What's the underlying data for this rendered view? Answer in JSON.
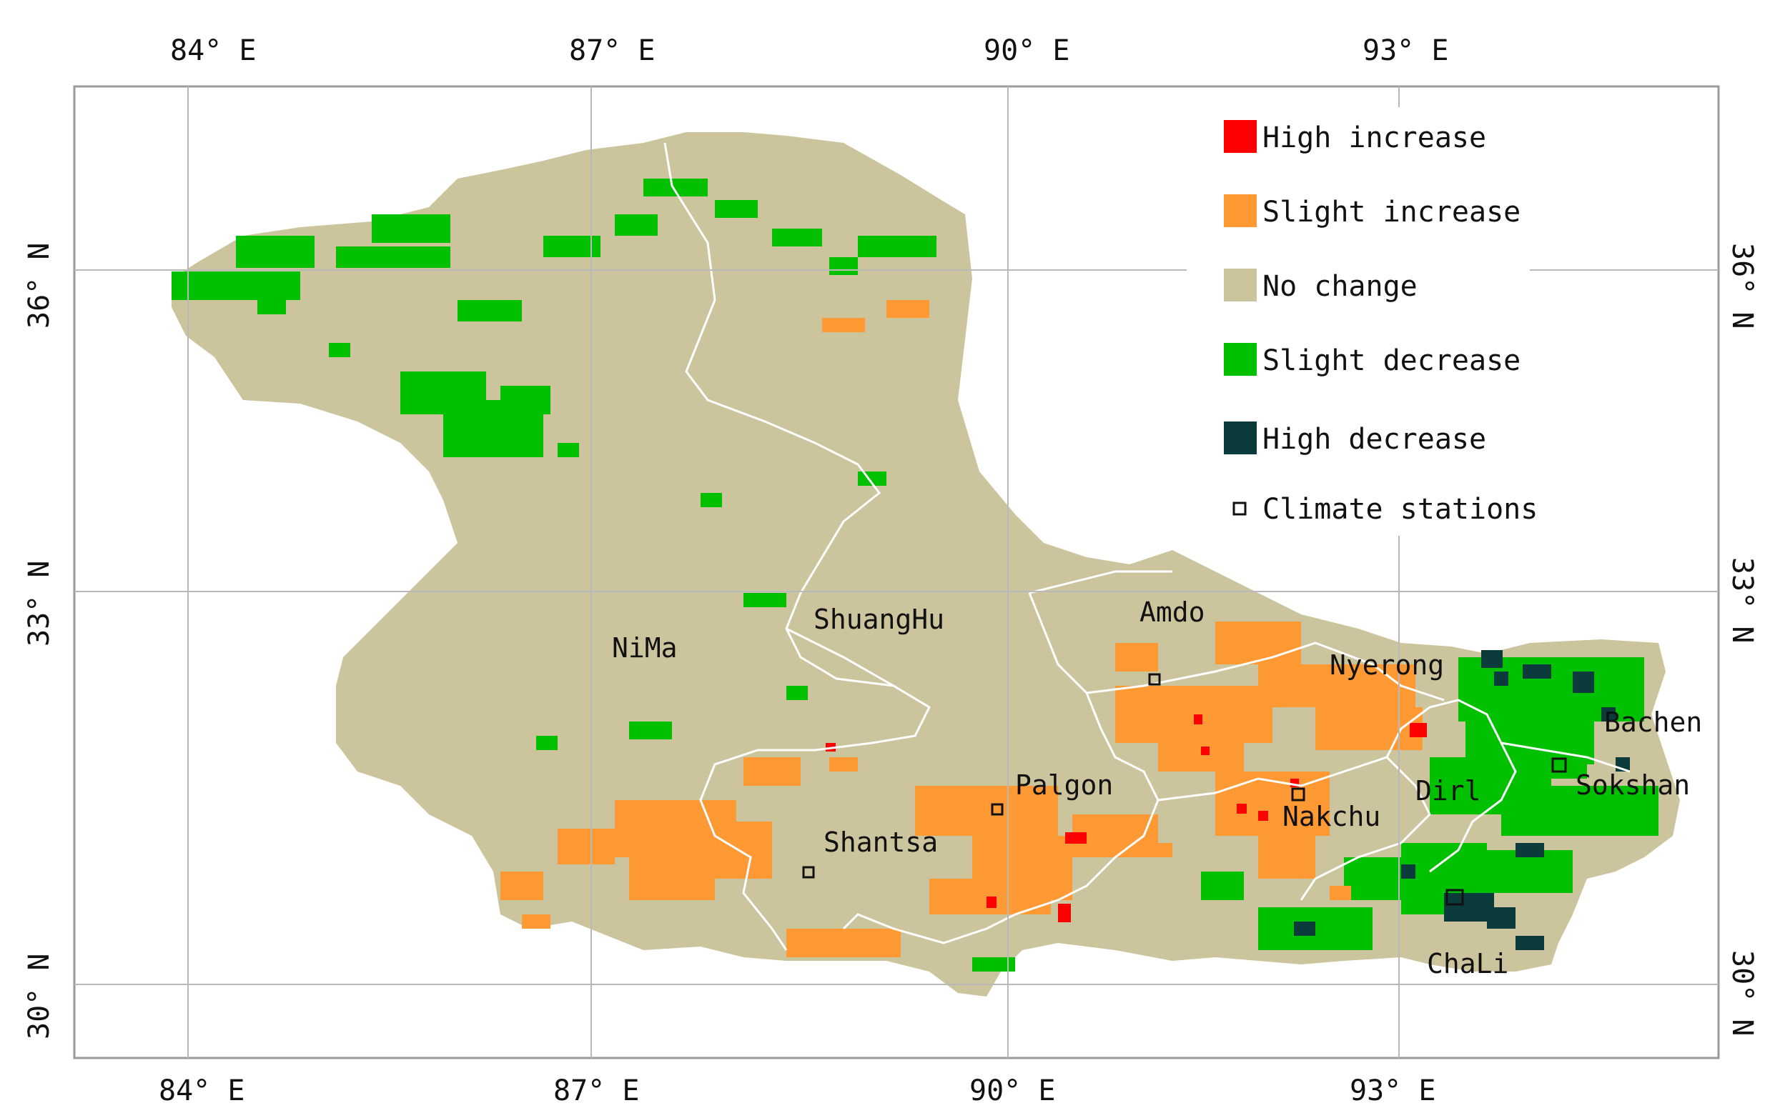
{
  "axes": {
    "longitude_labels_top": [
      "84° E",
      "87° E",
      "90° E",
      "93° E"
    ],
    "longitude_labels_bottom": [
      "84° E",
      "87° E",
      "90° E",
      "93° E"
    ],
    "latitude_labels_left": [
      "36° N",
      "33° N",
      "30° N"
    ],
    "latitude_labels_right": [
      "36° N",
      "33° N",
      "30° N"
    ]
  },
  "legend": {
    "items": [
      {
        "label": "High increase",
        "color": "#ff0000",
        "icon": "red-square"
      },
      {
        "label": "Slight increase",
        "color": "#ff9933",
        "icon": "orange-square"
      },
      {
        "label": "No change",
        "color": "#cbc49c",
        "icon": "tan-square"
      },
      {
        "label": "Slight decrease",
        "color": "#00c000",
        "icon": "green-square"
      },
      {
        "label": "High decrease",
        "color": "#0c3b3b",
        "icon": "dark-teal-square"
      }
    ],
    "station_label": "Climate stations",
    "station_icon": "hollow-square"
  },
  "places": [
    "NiMa",
    "ShuangHu",
    "Amdo",
    "Nyerong",
    "Bachen",
    "Sokshan",
    "Dirl",
    "Nakchu",
    "Palgon",
    "Shantsa",
    "ChaLi"
  ],
  "colors": {
    "no_change": "#cbc49c",
    "slight_increase": "#ff9933",
    "high_increase": "#ff0000",
    "slight_decrease": "#00c000",
    "high_decrease": "#0c3b3b",
    "grid": "#b8b8b8",
    "border": "#ffffff"
  }
}
